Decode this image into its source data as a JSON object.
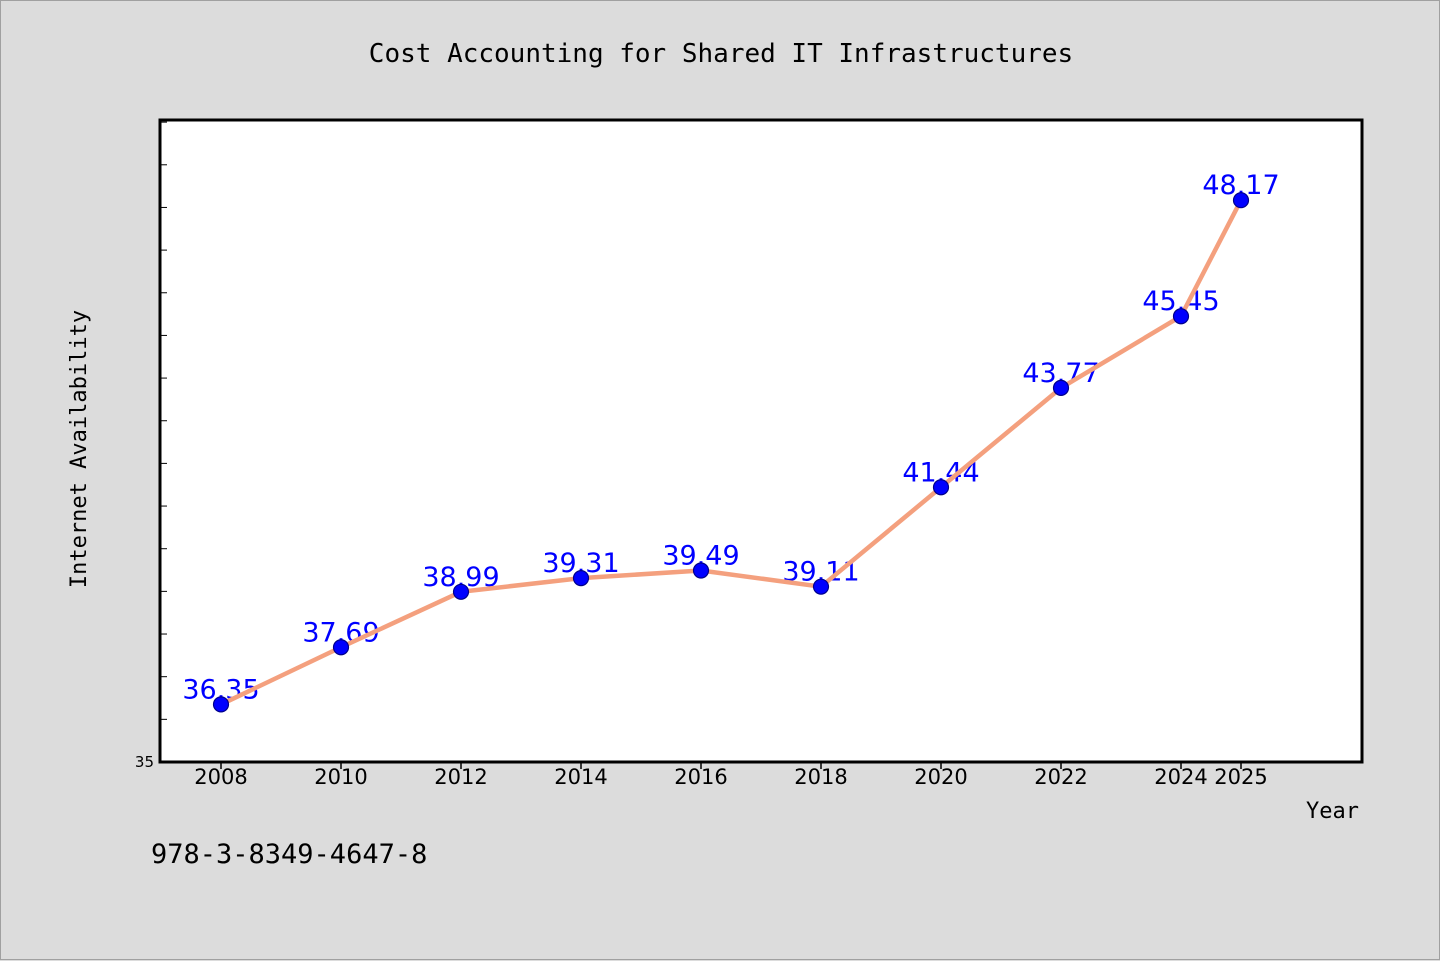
{
  "chart_data": {
    "type": "line",
    "title": "Cost Accounting for Shared IT Infrastructures",
    "xlabel": "Year",
    "ylabel": "Internet Availability",
    "categories": [
      "2008",
      "2010",
      "2012",
      "2014",
      "2016",
      "2018",
      "2020",
      "2022",
      "2024",
      "2025"
    ],
    "series": [
      {
        "values": [
          36.35,
          37.69,
          38.99,
          39.31,
          39.49,
          39.11,
          41.44,
          43.77,
          45.45,
          48.17
        ],
        "data_labels": [
          "36.35",
          "37.69",
          "38.99",
          "39.31",
          "39.49",
          "39.11",
          "41.44",
          "43.77",
          "45.45",
          "48.17"
        ]
      }
    ],
    "ylim": [
      35,
      50.05
    ],
    "y_tick_labels": [
      "35"
    ],
    "y_tick_step": 1,
    "grid": false,
    "legend": "none",
    "colors": {
      "line": "#f4a07e",
      "marker": "#0000ff",
      "marker_edge": "#00008b",
      "data_label": "#0000ff",
      "plot_background": "#ffffff",
      "figure_background": "#dcdcdc"
    }
  },
  "footer": {
    "isbn": "978-3-8349-4647-8"
  }
}
